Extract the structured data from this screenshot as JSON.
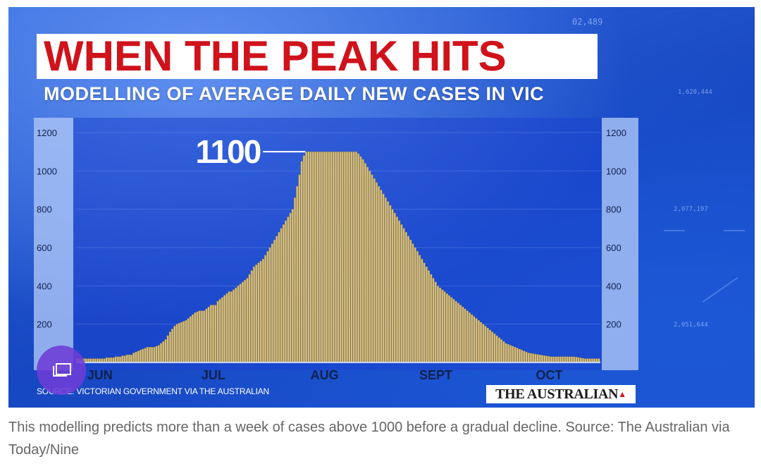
{
  "graphic": {
    "title": "WHEN THE PEAK HITS",
    "subtitle": "MODELLING OF AVERAGE DAILY NEW CASES IN VIC",
    "source": "SOURCE: VICTORIAN GOVERNMENT VIA THE AUSTRALIAN",
    "logo": "THE AUSTRALIAN",
    "peak_annotation": "1100",
    "background_numbers": [
      "02,489",
      "1,620,444",
      "2,077,197",
      "2,051,644"
    ]
  },
  "caption": "This modelling predicts more than a week of cases above 1000 before a gradual decline. Source: The Australian via Today/Nine",
  "gallery_button": {
    "icon": "gallery-icon"
  },
  "colors": {
    "title_red": "#d0121b",
    "background_blue": "#1f55d2",
    "bar_fill": "#d8bf7a",
    "bar_stroke": "#8f7a45",
    "axis_strip": "#aec3f5"
  },
  "chart_data": {
    "type": "bar",
    "title": "WHEN THE PEAK HITS",
    "subtitle": "MODELLING OF AVERAGE DAILY NEW CASES IN VIC",
    "xlabel": "",
    "ylabel": "",
    "ylim": [
      0,
      1200
    ],
    "yticks": [
      200,
      400,
      600,
      800,
      1000,
      1200
    ],
    "month_labels": [
      {
        "label": "JUN",
        "index": 10
      },
      {
        "label": "JUL",
        "index": 60
      },
      {
        "label": "AUG",
        "index": 109
      },
      {
        "label": "SEPT",
        "index": 158
      },
      {
        "label": "OCT",
        "index": 208
      }
    ],
    "annotation": {
      "label": "1100",
      "value": 1100
    },
    "grid": true,
    "values": [
      20,
      20,
      20,
      20,
      20,
      20,
      20,
      20,
      20,
      20,
      20,
      20,
      20,
      25,
      25,
      25,
      25,
      30,
      30,
      30,
      35,
      35,
      40,
      40,
      40,
      50,
      55,
      60,
      65,
      70,
      75,
      80,
      80,
      80,
      80,
      85,
      90,
      100,
      110,
      120,
      140,
      160,
      175,
      190,
      200,
      205,
      210,
      215,
      220,
      230,
      240,
      250,
      260,
      265,
      270,
      270,
      270,
      280,
      290,
      300,
      300,
      300,
      320,
      330,
      340,
      350,
      360,
      370,
      370,
      380,
      390,
      400,
      410,
      420,
      430,
      440,
      460,
      480,
      500,
      510,
      520,
      530,
      540,
      560,
      580,
      600,
      620,
      640,
      660,
      680,
      700,
      720,
      740,
      760,
      780,
      800,
      860,
      920,
      980,
      1050,
      1080,
      1100,
      1100,
      1100,
      1100,
      1100,
      1100,
      1100,
      1100,
      1100,
      1100,
      1100,
      1100,
      1100,
      1100,
      1100,
      1100,
      1100,
      1100,
      1100,
      1100,
      1100,
      1100,
      1100,
      1090,
      1075,
      1060,
      1040,
      1020,
      1000,
      980,
      960,
      940,
      920,
      900,
      880,
      860,
      840,
      820,
      800,
      780,
      760,
      740,
      720,
      700,
      680,
      660,
      640,
      620,
      600,
      580,
      560,
      540,
      520,
      500,
      480,
      460,
      440,
      420,
      400,
      390,
      380,
      370,
      360,
      350,
      340,
      330,
      320,
      310,
      300,
      290,
      280,
      270,
      260,
      250,
      240,
      230,
      220,
      210,
      200,
      190,
      180,
      170,
      160,
      150,
      140,
      130,
      120,
      110,
      100,
      95,
      90,
      85,
      80,
      75,
      70,
      65,
      60,
      55,
      50,
      48,
      46,
      44,
      42,
      40,
      38,
      36,
      34,
      32,
      30,
      30,
      30,
      30,
      30,
      30,
      30,
      30,
      30,
      30,
      30,
      28,
      26,
      24,
      22,
      20,
      20,
      20,
      20,
      20,
      20,
      20
    ]
  }
}
